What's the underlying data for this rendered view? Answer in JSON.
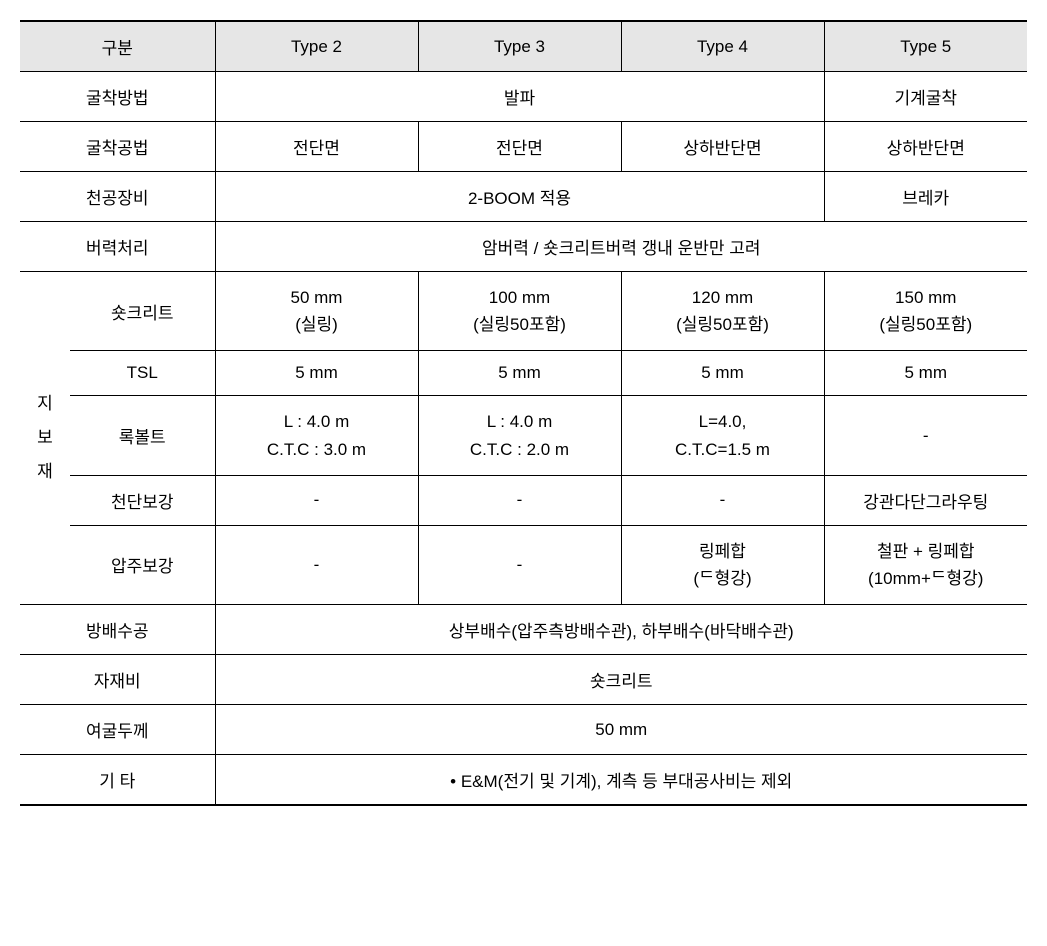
{
  "header": {
    "c1": "구분",
    "c2": "Type 2",
    "c3": "Type 3",
    "c4": "Type 4",
    "c5": "Type 5"
  },
  "rows": {
    "excavation_method": {
      "label": "굴착방법",
      "val_234": "발파",
      "val_5": "기계굴착"
    },
    "excavation_technique": {
      "label": "굴착공법",
      "val_2": "전단면",
      "val_3": "전단면",
      "val_4": "상하반단면",
      "val_5": "상하반단면"
    },
    "drilling_equipment": {
      "label": "천공장비",
      "val_234": "2-BOOM 적용",
      "val_5": "브레카"
    },
    "muck_handling": {
      "label": "버력처리",
      "val_all": "암버력 / 숏크리트버력 갱내 운반만 고려"
    },
    "support_group_label": "지\n보\n재",
    "shotcrete": {
      "label": "숏크리트",
      "val_2_l1": "50 mm",
      "val_2_l2": "(실링)",
      "val_3_l1": "100 mm",
      "val_3_l2": "(실링50포함)",
      "val_4_l1": "120 mm",
      "val_4_l2": "(실링50포함)",
      "val_5_l1": "150 mm",
      "val_5_l2": "(실링50포함)"
    },
    "tsl": {
      "label": "TSL",
      "val_2": "5 mm",
      "val_3": "5 mm",
      "val_4": "5 mm",
      "val_5": "5 mm"
    },
    "rockbolt": {
      "label": "록볼트",
      "val_2_l1": "L : 4.0 m",
      "val_2_l2": "C.T.C : 3.0 m",
      "val_3_l1": "L : 4.0 m",
      "val_3_l2": "C.T.C : 2.0 m",
      "val_4_l1": "L=4.0,",
      "val_4_l2": "C.T.C=1.5 m",
      "val_5": "-"
    },
    "crown_reinforcement": {
      "label": "천단보강",
      "val_2": "-",
      "val_3": "-",
      "val_4": "-",
      "val_5": "강관다단그라우팅"
    },
    "rock_pillar_reinforcement": {
      "label": "압주보강",
      "val_2": "-",
      "val_3": "-",
      "val_4_l1": "링페합",
      "val_4_l2": "(ᄃ형강)",
      "val_5_l1": "철판 + 링페합",
      "val_5_l2": "(10mm+ᄃ형강)"
    },
    "drainage": {
      "label": "방배수공",
      "val_all": "상부배수(압주측방배수관), 하부배수(바닥배수관)"
    },
    "material_cost": {
      "label": "자재비",
      "val_all": "숏크리트"
    },
    "overbreak": {
      "label": "여굴두께",
      "val_all": "50 mm"
    },
    "other": {
      "label": "기 타",
      "val_all": "• E&M(전기 및 기계), 계측 등 부대공사비는 제외"
    }
  },
  "style": {
    "header_bg": "#e6e6e6",
    "border_color": "#000000",
    "text_color": "#000000",
    "font_size": 17,
    "background": "#ffffff"
  }
}
